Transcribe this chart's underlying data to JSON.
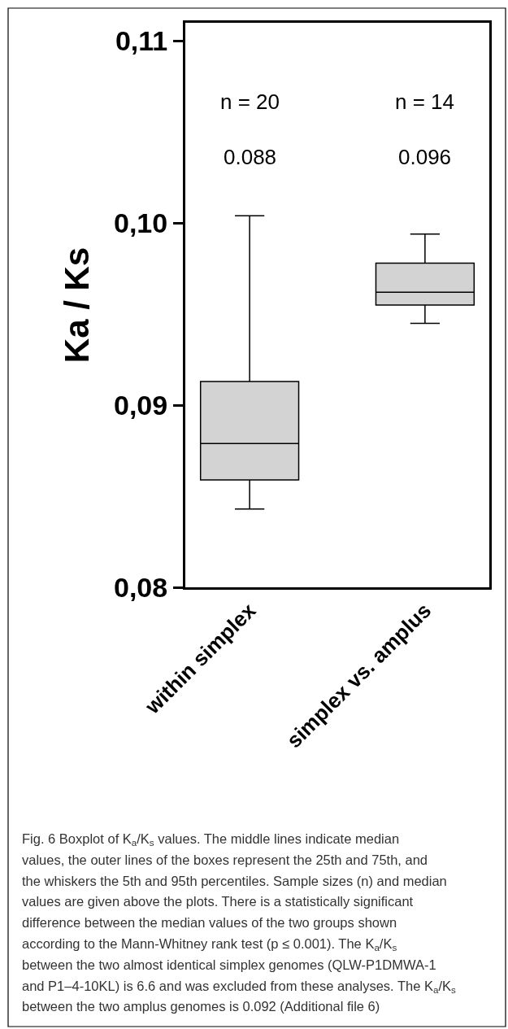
{
  "chart_data": {
    "type": "box",
    "ylabel": "Ka / Ks",
    "categories": [
      "within simplex",
      "simplex vs. amplus"
    ],
    "boxes": [
      {
        "low": 0.0843,
        "q1": 0.0859,
        "median": 0.0879,
        "q3": 0.0913,
        "high": 0.1004
      },
      {
        "low": 0.0945,
        "q1": 0.0955,
        "median": 0.0962,
        "q3": 0.0978,
        "high": 0.0994
      }
    ],
    "color": "#d3d3d3",
    "ylim": [
      0.08,
      0.111
    ],
    "yticks": [
      {
        "value": 0.08,
        "label": "0,08"
      },
      {
        "value": 0.09,
        "label": "0,09"
      },
      {
        "value": 0.1,
        "label": "0,10"
      },
      {
        "value": 0.11,
        "label": "0,11"
      }
    ],
    "legend": false,
    "annotations": [
      "n = 20",
      "n = 14",
      "0.088",
      "0.096",
      "Fig. 6 Boxplot of K$_{a}$/K$_{s}$ values. The middle lines indicate median",
      "values, the outer lines of the boxes represent the 25th and 75th, and",
      "the whiskers the 5th and 95th percentiles. Sample sizes (n) and median",
      "values are given above the plots. There is a statistically significant",
      "difference between the median values of the two groups shown",
      "according to the Mann-Whitney rank test (p ≤ 0.001). The K$_{a}$/K$_{s}$",
      "between the two almost identical simplex genomes (QLW-P1DMWA-1",
      "and P1–4-10KL) is 6.6 and was excluded from these analyses. The K$_{a}$/K$_{s}$",
      "between the two amplus genomes is 0.092 (Additional file 6)"
    ]
  }
}
